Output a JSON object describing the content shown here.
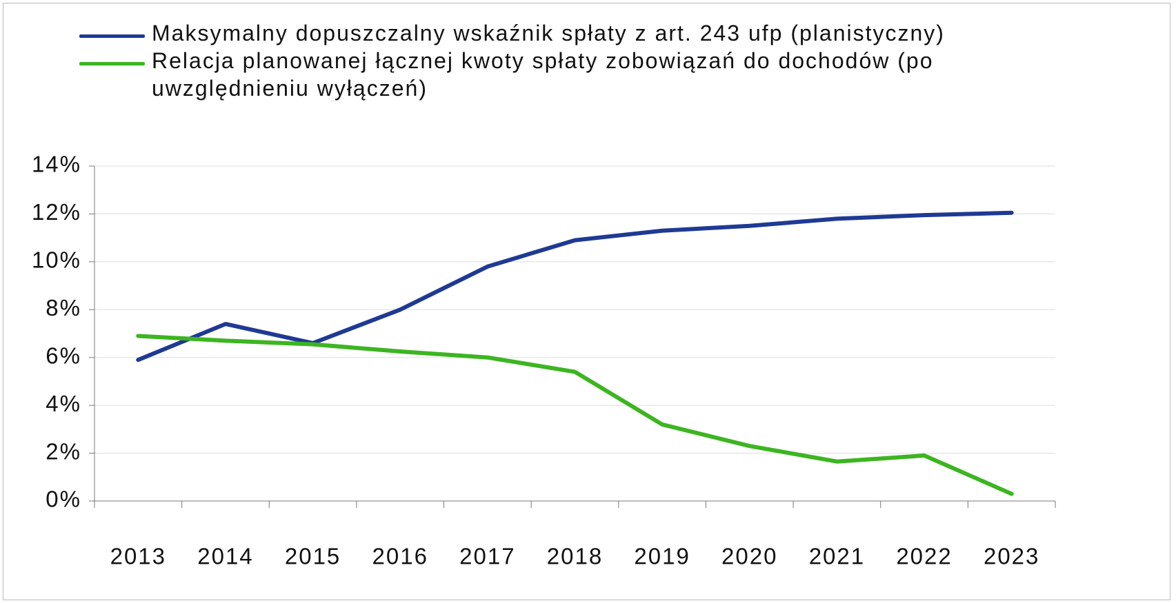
{
  "chart_data": {
    "type": "line",
    "categories": [
      "2013",
      "2014",
      "2015",
      "2016",
      "2017",
      "2018",
      "2019",
      "2020",
      "2021",
      "2022",
      "2023"
    ],
    "series": [
      {
        "name": "Maksymalny dopuszczalny wskaźnik spłaty z art. 243 ufp (planistyczny)",
        "color": "#1f3a93",
        "values": [
          5.9,
          7.4,
          6.6,
          8.0,
          9.8,
          10.9,
          11.3,
          11.5,
          11.8,
          11.95,
          12.05
        ]
      },
      {
        "name": "Relacja planowanej łącznej kwoty spłaty zobowiązań do dochodów (po uwzględnieniu wyłączeń)",
        "color": "#3cb521",
        "values": [
          6.9,
          6.7,
          6.55,
          6.25,
          6.0,
          5.4,
          3.2,
          2.3,
          1.65,
          1.9,
          0.3
        ]
      }
    ],
    "ylim": [
      0,
      14
    ],
    "yticks": [
      {
        "value": 0,
        "label": "0%"
      },
      {
        "value": 2,
        "label": "2%"
      },
      {
        "value": 4,
        "label": "4%"
      },
      {
        "value": 6,
        "label": "6%"
      },
      {
        "value": 8,
        "label": "8%"
      },
      {
        "value": 10,
        "label": "10%"
      },
      {
        "value": 12,
        "label": "12%"
      },
      {
        "value": 14,
        "label": "14%"
      }
    ],
    "grid": true,
    "legend": "top"
  }
}
